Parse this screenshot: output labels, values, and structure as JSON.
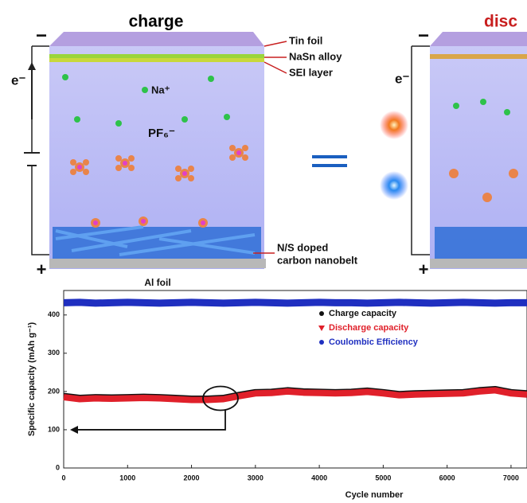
{
  "schematic": {
    "left_title": "charge",
    "right_title": "disc",
    "labels": {
      "tin_foil": "Tin foil",
      "nasn_alloy": "NaSn alloy",
      "sei_layer": "SEI layer",
      "na_ion": "Na⁺",
      "pf6_ion": "PF₆⁻",
      "electron_left": "e⁻",
      "electron_right": "e⁻",
      "carbon_line1": "N/S doped",
      "carbon_line2": "carbon nanobelt",
      "al_foil": "Al foil",
      "minus_left": "−",
      "plus_left": "+",
      "minus_right": "−",
      "plus_right": "+"
    }
  },
  "chart_data": {
    "type": "line",
    "x_label": "Cycle number",
    "y_label": "Specific capacity (mAh g⁻¹)",
    "x": [
      0,
      250,
      500,
      750,
      1000,
      1250,
      1500,
      1750,
      2000,
      2250,
      2500,
      2750,
      3000,
      3250,
      3500,
      3750,
      4000,
      4250,
      4500,
      4750,
      5000,
      5250,
      5500,
      5750,
      6000,
      6250,
      6500,
      6750,
      7000,
      7250
    ],
    "series": [
      {
        "name": "Charge capacity",
        "color": "#111111",
        "values": [
          187,
          182,
          184,
          183,
          184,
          185,
          184,
          182,
          180,
          180,
          182,
          190,
          197,
          198,
          202,
          199,
          198,
          197,
          198,
          201,
          197,
          192,
          194,
          195,
          196,
          197,
          202,
          205,
          197,
          194
        ]
      },
      {
        "name": "Discharge capacity",
        "color": "#e0202a",
        "values": [
          185,
          180,
          182,
          181,
          182,
          183,
          182,
          180,
          178,
          178,
          180,
          188,
          195,
          196,
          200,
          197,
          196,
          195,
          196,
          199,
          195,
          190,
          192,
          193,
          194,
          195,
          200,
          203,
          195,
          192
        ]
      },
      {
        "name": "Coulombic Efficiency",
        "color": "#1f2fc0",
        "values": [
          432,
          433,
          431,
          432,
          433,
          432,
          431,
          432,
          433,
          432,
          431,
          432,
          433,
          432,
          431,
          432,
          433,
          432,
          432,
          431,
          432,
          433,
          432,
          431,
          432,
          433,
          432,
          431,
          432,
          432
        ]
      }
    ],
    "xlim": [
      0,
      7250
    ],
    "ylim": [
      0,
      464
    ],
    "xticks": [
      0,
      1000,
      2000,
      3000,
      4000,
      5000,
      6000,
      7000
    ],
    "yticks": [
      0,
      100,
      200,
      300,
      400
    ]
  }
}
